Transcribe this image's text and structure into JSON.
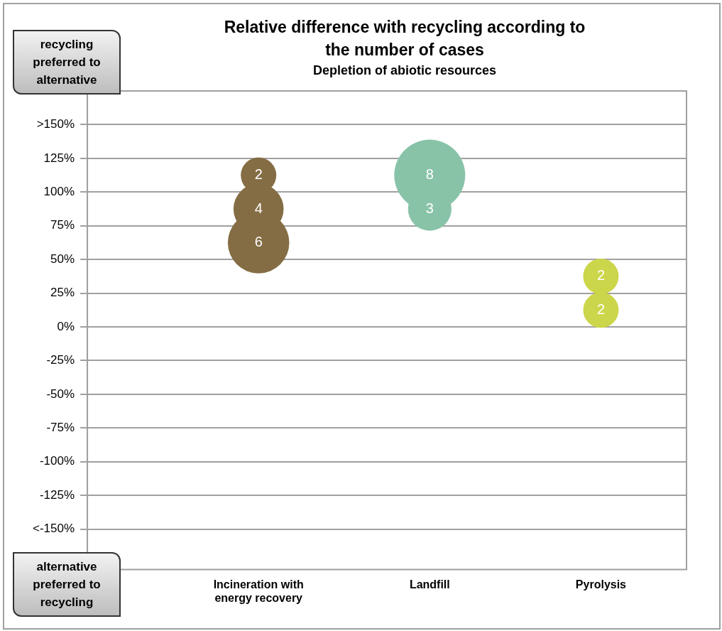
{
  "chart_data": {
    "type": "bubble",
    "title": "Relative difference with recycling according to the number of cases",
    "subtitle": "Depletion of abiotic resources",
    "categories": [
      "Incineration with energy recovery",
      "Landfill",
      "Pyrolysis"
    ],
    "series": [
      {
        "color": "#846d44",
        "x": [
          "Incineration with energy recovery",
          "Incineration with energy recovery",
          "Incineration with energy recovery"
        ],
        "values": [
          112.5,
          87.5,
          62.5
        ],
        "sizes": [
          2,
          4,
          6
        ],
        "value_labels": [
          "2",
          "4",
          "6"
        ]
      },
      {
        "color": "#88c3a8",
        "x": [
          "Landfill",
          "Landfill"
        ],
        "values": [
          112.5,
          87.5
        ],
        "sizes": [
          8,
          3
        ],
        "value_labels": [
          "8",
          "3"
        ]
      },
      {
        "color": "#ccd64a",
        "x": [
          "Pyrolysis",
          "Pyrolysis"
        ],
        "values": [
          37.5,
          12.5
        ],
        "sizes": [
          2,
          2
        ],
        "value_labels": [
          "2",
          "2"
        ]
      }
    ],
    "ylim": [
      -180,
      175
    ],
    "yticks": [
      {
        "value": 150,
        "label": ">150%"
      },
      {
        "value": 125,
        "label": "125%"
      },
      {
        "value": 100,
        "label": "100%"
      },
      {
        "value": 75,
        "label": "75%"
      },
      {
        "value": 50,
        "label": "50%"
      },
      {
        "value": 25,
        "label": "25%"
      },
      {
        "value": 0,
        "label": "0%"
      },
      {
        "value": -25,
        "label": "-25%"
      },
      {
        "value": -50,
        "label": "-50%"
      },
      {
        "value": -75,
        "label": "-75%"
      },
      {
        "value": -100,
        "label": "-100%"
      },
      {
        "value": -125,
        "label": "-125%"
      },
      {
        "value": -150,
        "label": "<-150%"
      }
    ],
    "grid": "y",
    "legend": false,
    "annotations": [
      "recycling preferred to alternative",
      "alternative preferred to recycling"
    ]
  }
}
